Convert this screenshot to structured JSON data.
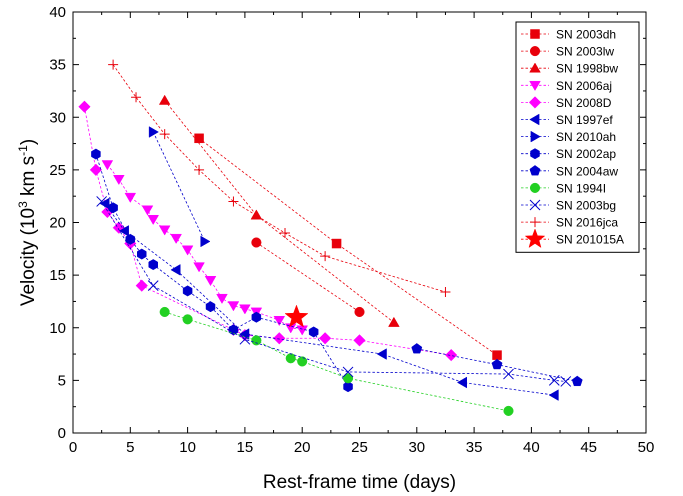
{
  "chart_data": {
    "type": "scatter",
    "xlabel": "Rest-frame time (days)",
    "ylabel_parts": {
      "main": "Velocity (10",
      "exp1": "3",
      "mid": " km s",
      "exp2": "-1",
      "end": ")"
    },
    "xlim": [
      0,
      50
    ],
    "ylim": [
      0,
      40
    ],
    "xticks": [
      0,
      5,
      10,
      15,
      20,
      25,
      30,
      35,
      40,
      45,
      50
    ],
    "yticks": [
      0,
      5,
      10,
      15,
      20,
      25,
      30,
      35,
      40
    ],
    "grid": false,
    "legend_position": "top-right",
    "series": [
      {
        "name": "SN 2003dh",
        "color": "#e8000b",
        "marker": "square",
        "points": [
          [
            11,
            28
          ],
          [
            23,
            18
          ],
          [
            37,
            7.4
          ]
        ]
      },
      {
        "name": "SN 2003lw",
        "color": "#e8000b",
        "marker": "circle",
        "points": [
          [
            16,
            18.1
          ],
          [
            25,
            11.5
          ]
        ]
      },
      {
        "name": "SN 1998bw",
        "color": "#e8000b",
        "marker": "triangle-up",
        "points": [
          [
            8,
            31.6
          ],
          [
            16,
            20.7
          ],
          [
            28,
            10.5
          ]
        ]
      },
      {
        "name": "SN 2006aj",
        "color": "#ff00ff",
        "marker": "triangle-down",
        "points": [
          [
            3,
            25.5
          ],
          [
            4,
            24.1
          ],
          [
            5,
            22.4
          ],
          [
            6.5,
            21.2
          ],
          [
            7,
            20.3
          ],
          [
            8,
            19.3
          ],
          [
            9,
            18.5
          ],
          [
            10,
            17.4
          ],
          [
            11,
            15.8
          ],
          [
            12,
            14.5
          ],
          [
            13,
            12.8
          ],
          [
            14,
            12.1
          ],
          [
            15,
            11.8
          ],
          [
            16,
            11.5
          ],
          [
            18,
            10.7
          ],
          [
            19,
            10
          ],
          [
            20,
            9.8
          ]
        ]
      },
      {
        "name": "SN 2008D",
        "color": "#ff00ff",
        "marker": "diamond",
        "points": [
          [
            1,
            31
          ],
          [
            2,
            25
          ],
          [
            3,
            21
          ],
          [
            4,
            19.5
          ],
          [
            5,
            18
          ],
          [
            6,
            14
          ],
          [
            14,
            9.8
          ],
          [
            15,
            9.3
          ],
          [
            18,
            9
          ],
          [
            22,
            9
          ],
          [
            25,
            8.8
          ],
          [
            33,
            7.4
          ]
        ]
      },
      {
        "name": "SN 1997ef",
        "color": "#0000cc",
        "marker": "triangle-left",
        "points": [
          [
            2.8,
            21.8
          ],
          [
            4.5,
            19.2
          ],
          [
            9,
            15.5
          ],
          [
            15,
            9.4
          ],
          [
            27,
            7.5
          ],
          [
            34,
            4.8
          ],
          [
            42,
            3.6
          ]
        ]
      },
      {
        "name": "SN 2010ah",
        "color": "#0000cc",
        "marker": "triangle-right",
        "points": [
          [
            7,
            28.6
          ],
          [
            11.5,
            18.2
          ]
        ]
      },
      {
        "name": "SN 2002ap",
        "color": "#0000cc",
        "marker": "hexagon",
        "points": [
          [
            2,
            26.5
          ],
          [
            3.5,
            21.4
          ],
          [
            5,
            18.4
          ],
          [
            6,
            17
          ],
          [
            7,
            16
          ],
          [
            10,
            13.5
          ],
          [
            12,
            12
          ],
          [
            14,
            9.8
          ],
          [
            16,
            11
          ],
          [
            21,
            9.6
          ],
          [
            24,
            4.4
          ]
        ]
      },
      {
        "name": "SN 2004aw",
        "color": "#0000cc",
        "marker": "pentagon",
        "points": [
          [
            30,
            8
          ],
          [
            37,
            6.5
          ],
          [
            44,
            4.9
          ]
        ]
      },
      {
        "name": "SN 1994I",
        "color": "#22d022",
        "marker": "circle",
        "points": [
          [
            8,
            11.5
          ],
          [
            10,
            10.8
          ],
          [
            16,
            8.8
          ],
          [
            19,
            7.1
          ],
          [
            20,
            6.8
          ],
          [
            24,
            5.2
          ],
          [
            38,
            2.1
          ]
        ]
      },
      {
        "name": "SN 2003bg",
        "color": "#0000cc",
        "marker": "x",
        "points": [
          [
            2.5,
            22
          ],
          [
            7,
            14
          ],
          [
            15,
            8.9
          ],
          [
            24,
            5.8
          ],
          [
            38,
            5.6
          ],
          [
            42,
            5
          ],
          [
            43,
            4.9
          ]
        ]
      },
      {
        "name": "SN 2016jca",
        "color": "#e8000b",
        "marker": "plus",
        "points": [
          [
            3.5,
            35
          ],
          [
            5.5,
            31.9
          ],
          [
            8,
            28.4
          ],
          [
            11,
            25
          ],
          [
            14,
            22
          ],
          [
            18.5,
            19
          ],
          [
            22,
            16.8
          ],
          [
            32.5,
            13.4
          ]
        ]
      },
      {
        "name": "SN 201015A",
        "color": "#ff0000",
        "marker": "star",
        "points": [
          [
            19.5,
            11
          ]
        ]
      }
    ]
  }
}
